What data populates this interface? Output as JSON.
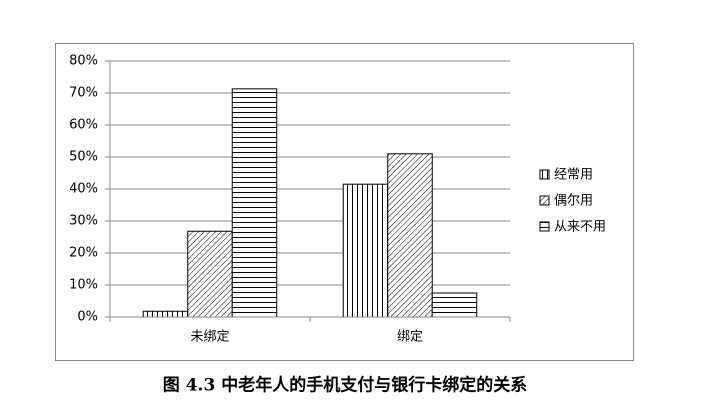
{
  "chart_data": {
    "type": "bar",
    "title": "图 4.3 中老年人的手机支付与银行卡绑定的关系",
    "categories": [
      "未绑定",
      "绑定"
    ],
    "series": [
      {
        "name": "经常用",
        "color": "#000000",
        "pattern": "vertical",
        "values": [
          1.8,
          41.5
        ]
      },
      {
        "name": "偶尔用",
        "color": "#000000",
        "pattern": "diagonal",
        "values": [
          26.8,
          51
        ]
      },
      {
        "name": "从来不用",
        "color": "#000000",
        "pattern": "horizontal",
        "values": [
          71.3,
          7.5
        ]
      }
    ],
    "ylim": [
      0,
      80
    ],
    "yticks": [
      {
        "value": 0,
        "label": "0%"
      },
      {
        "value": 10,
        "label": "10%"
      },
      {
        "value": 20,
        "label": "20%"
      },
      {
        "value": 30,
        "label": "30%"
      },
      {
        "value": 40,
        "label": "40%"
      },
      {
        "value": 50,
        "label": "50%"
      },
      {
        "value": 60,
        "label": "60%"
      },
      {
        "value": 70,
        "label": "70%"
      },
      {
        "value": 80,
        "label": "80%"
      }
    ],
    "grid": true,
    "legend": "right"
  }
}
